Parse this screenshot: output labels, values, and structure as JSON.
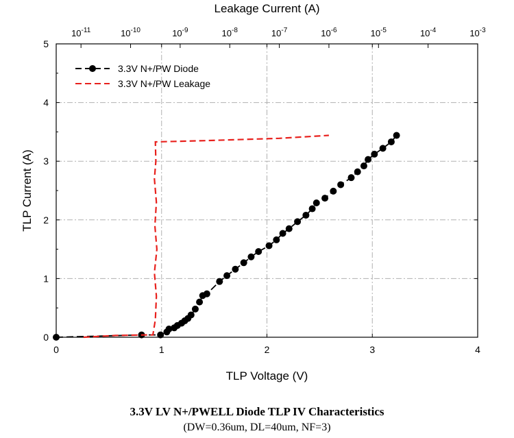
{
  "chart_data": {
    "type": "scatter",
    "title": "3.3V LV N+/PWELL Diode TLP IV Characteristics",
    "subtitle": "(DW=0.36um, DL=40um, NF=3)",
    "xlabel": "TLP Voltage (V)",
    "ylabel": "TLP Current (A)",
    "x2label": "Leakage Current (A)",
    "xlim": [
      0,
      4
    ],
    "ylim": [
      0,
      5
    ],
    "x2lim_log10": [
      -11.5,
      -3
    ],
    "xticks": [
      "0",
      "1",
      "2",
      "3",
      "4"
    ],
    "yticks": [
      "0",
      "1",
      "2",
      "3",
      "4",
      "5"
    ],
    "x2ticks": [
      {
        "base": "10",
        "exp": "-11",
        "value": -11
      },
      {
        "base": "10",
        "exp": "-10",
        "value": -10
      },
      {
        "base": "10",
        "exp": "-9",
        "value": -9
      },
      {
        "base": "10",
        "exp": "-8",
        "value": -8
      },
      {
        "base": "10",
        "exp": "-7",
        "value": -7
      },
      {
        "base": "10",
        "exp": "-6",
        "value": -6
      },
      {
        "base": "10",
        "exp": "-5",
        "value": -5
      },
      {
        "base": "10",
        "exp": "-4",
        "value": -4
      },
      {
        "base": "10",
        "exp": "-3",
        "value": -3
      }
    ],
    "grid": true,
    "legend_position": "top-left",
    "series": [
      {
        "name": "3.3V N+/PW Diode",
        "axis": "bottom",
        "color": "#000000",
        "line": "dashed",
        "marker": "circle",
        "points": [
          [
            0.0,
            0.0
          ],
          [
            0.81,
            0.04
          ],
          [
            0.99,
            0.04
          ],
          [
            1.05,
            0.09
          ],
          [
            1.07,
            0.14
          ],
          [
            1.12,
            0.16
          ],
          [
            1.15,
            0.2
          ],
          [
            1.19,
            0.24
          ],
          [
            1.22,
            0.28
          ],
          [
            1.25,
            0.32
          ],
          [
            1.28,
            0.38
          ],
          [
            1.32,
            0.48
          ],
          [
            1.36,
            0.6
          ],
          [
            1.39,
            0.71
          ],
          [
            1.43,
            0.74
          ],
          [
            1.55,
            0.95
          ],
          [
            1.62,
            1.05
          ],
          [
            1.7,
            1.16
          ],
          [
            1.78,
            1.27
          ],
          [
            1.85,
            1.37
          ],
          [
            1.92,
            1.46
          ],
          [
            2.02,
            1.56
          ],
          [
            2.09,
            1.66
          ],
          [
            2.15,
            1.77
          ],
          [
            2.21,
            1.85
          ],
          [
            2.29,
            1.97
          ],
          [
            2.37,
            2.08
          ],
          [
            2.43,
            2.19
          ],
          [
            2.47,
            2.29
          ],
          [
            2.55,
            2.37
          ],
          [
            2.63,
            2.49
          ],
          [
            2.7,
            2.6
          ],
          [
            2.8,
            2.72
          ],
          [
            2.86,
            2.82
          ],
          [
            2.92,
            2.92
          ],
          [
            2.96,
            3.03
          ],
          [
            3.02,
            3.12
          ],
          [
            3.1,
            3.22
          ],
          [
            3.18,
            3.33
          ],
          [
            3.23,
            3.44
          ]
        ]
      },
      {
        "name": "3.3V N+/PW Leakage",
        "axis": "top",
        "color": "#e8201c",
        "line": "dashed",
        "marker": "none",
        "points": [
          [
            -10.95,
            0.0
          ],
          [
            -10.3,
            0.03
          ],
          [
            -9.7,
            0.04
          ],
          [
            -9.55,
            0.04
          ],
          [
            -9.5,
            0.3
          ],
          [
            -9.48,
            0.7
          ],
          [
            -9.52,
            1.1
          ],
          [
            -9.47,
            1.5
          ],
          [
            -9.51,
            1.9
          ],
          [
            -9.48,
            2.3
          ],
          [
            -9.52,
            2.7
          ],
          [
            -9.49,
            3.0
          ],
          [
            -9.5,
            3.33
          ],
          [
            -8.5,
            3.35
          ],
          [
            -7.0,
            3.39
          ],
          [
            -6.0,
            3.44
          ]
        ]
      }
    ]
  }
}
